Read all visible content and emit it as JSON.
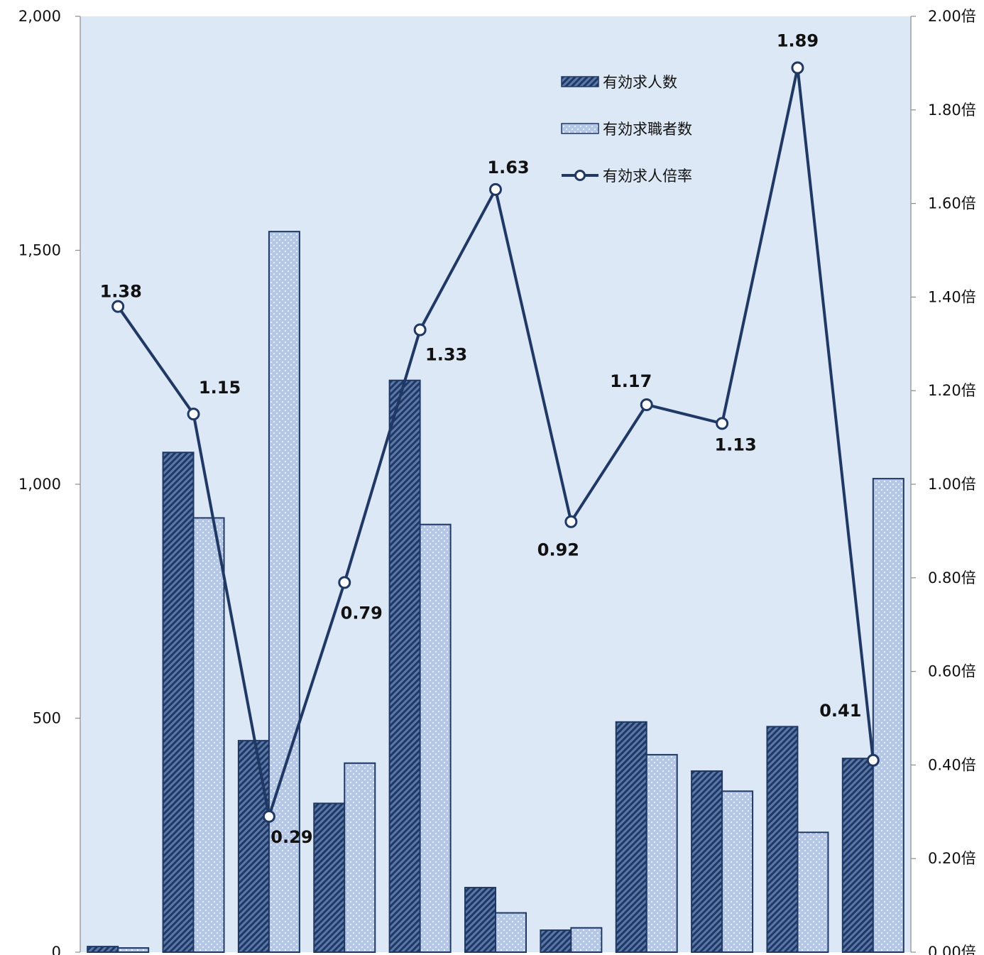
{
  "chart_data": {
    "type": "bar+line",
    "categories": [
      "",
      "",
      "",
      "",
      "",
      "",
      "",
      "",
      "",
      "",
      ""
    ],
    "series": [
      {
        "name": "有効求人数",
        "kind": "bar",
        "axis": "left",
        "pattern": "diagonal-stripe",
        "color": "#1f3864",
        "values": [
          12,
          1068,
          452,
          318,
          1222,
          138,
          47,
          492,
          387,
          482,
          414
        ]
      },
      {
        "name": "有効求職者数",
        "kind": "bar",
        "axis": "left",
        "pattern": "dots",
        "color": "#b4c7e7",
        "values": [
          9,
          928,
          1540,
          404,
          914,
          84,
          52,
          422,
          344,
          256,
          1012
        ]
      },
      {
        "name": "有効求人倍率",
        "kind": "line",
        "axis": "right",
        "marker": "circle",
        "color": "#1f3864",
        "values": [
          1.38,
          1.15,
          0.29,
          0.79,
          1.33,
          1.63,
          0.92,
          1.17,
          1.13,
          1.89,
          0.41
        ],
        "labels": [
          "1.38",
          "1.15",
          "0.29",
          "0.79",
          "1.33",
          "1.63",
          "0.92",
          "1.17",
          "1.13",
          "1.89",
          "0.41"
        ]
      }
    ],
    "y_left": {
      "min": 0,
      "max": 2000,
      "ticks": [
        0,
        500,
        1000,
        1500,
        2000
      ],
      "tick_labels": [
        "0",
        "500",
        "1,000",
        "1,500",
        "2,000"
      ]
    },
    "y_right": {
      "min": 0,
      "max": 2.0,
      "ticks": [
        0,
        0.2,
        0.4,
        0.6,
        0.8,
        1.0,
        1.2,
        1.4,
        1.6,
        1.8,
        2.0
      ],
      "tick_labels": [
        "0.00倍",
        "0.20倍",
        "0.40倍",
        "0.60倍",
        "0.80倍",
        "1.00倍",
        "1.20倍",
        "1.40倍",
        "1.60倍",
        "1.80倍",
        "2.00倍"
      ]
    },
    "plot_background": "#dde8f6",
    "legend_placement": "top-right",
    "grid": false
  }
}
